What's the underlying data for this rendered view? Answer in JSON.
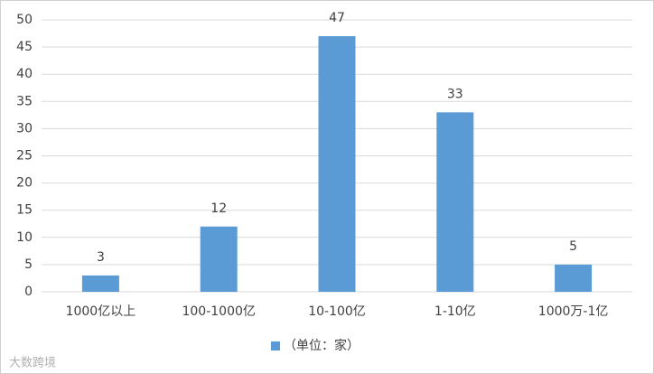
{
  "chart_data": {
    "type": "bar",
    "categories": [
      "1000亿以上",
      "100-1000亿",
      "10-100亿",
      "1-10亿",
      "1000万-1亿"
    ],
    "series": [
      {
        "name": "（单位：家）",
        "color": "#5b9bd5",
        "values": [
          3,
          12,
          47,
          33,
          5
        ]
      }
    ],
    "ylim": [
      0,
      50
    ],
    "yticks": [
      0,
      5,
      10,
      15,
      20,
      25,
      30,
      35,
      40,
      45,
      50
    ],
    "grid": true,
    "legend": "bottom",
    "data_labels": true,
    "watermark": "大数跨境"
  }
}
